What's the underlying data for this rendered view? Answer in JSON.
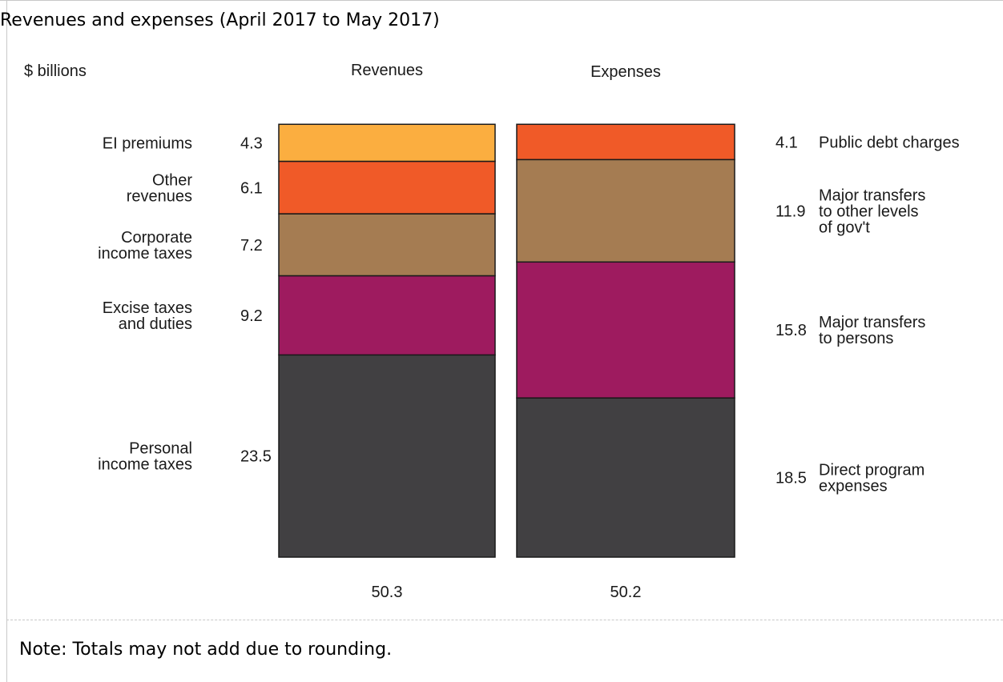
{
  "title": "Revenues and expenses (April 2017 to May 2017)",
  "note": "Note: Totals may not add due to rounding.",
  "chart_data": {
    "type": "bar",
    "stacked": true,
    "unit_label": "$ billions",
    "ylim": [
      0,
      55
    ],
    "bars": [
      {
        "name": "Revenues",
        "total": "50.3",
        "segments": [
          {
            "label": [
              "Personal",
              "income taxes"
            ],
            "value": 23.5,
            "value_label": "23.5",
            "color": "#414042"
          },
          {
            "label": [
              "Excise taxes",
              "and duties"
            ],
            "value": 9.2,
            "value_label": "9.2",
            "color": "#9e1b5f"
          },
          {
            "label": [
              "Corporate",
              "income taxes"
            ],
            "value": 7.2,
            "value_label": "7.2",
            "color": "#a57c52"
          },
          {
            "label": [
              "Other",
              "revenues"
            ],
            "value": 6.1,
            "value_label": "6.1",
            "color": "#f05a28"
          },
          {
            "label": [
              "EI premiums"
            ],
            "value": 4.3,
            "value_label": "4.3",
            "color": "#fbae40"
          }
        ]
      },
      {
        "name": "Expenses",
        "total": "50.2",
        "segments": [
          {
            "label": [
              "Direct program",
              "expenses"
            ],
            "value": 18.5,
            "value_label": "18.5",
            "color": "#414042"
          },
          {
            "label": [
              "Major transfers",
              "to persons"
            ],
            "value": 15.8,
            "value_label": "15.8",
            "color": "#9e1b5f"
          },
          {
            "label": [
              "Major transfers",
              "to other levels",
              "of gov't"
            ],
            "value": 11.9,
            "value_label": "11.9",
            "color": "#a57c52"
          },
          {
            "label": [
              "Public debt charges"
            ],
            "value": 4.1,
            "value_label": "4.1",
            "color": "#f05a28"
          }
        ]
      }
    ]
  }
}
